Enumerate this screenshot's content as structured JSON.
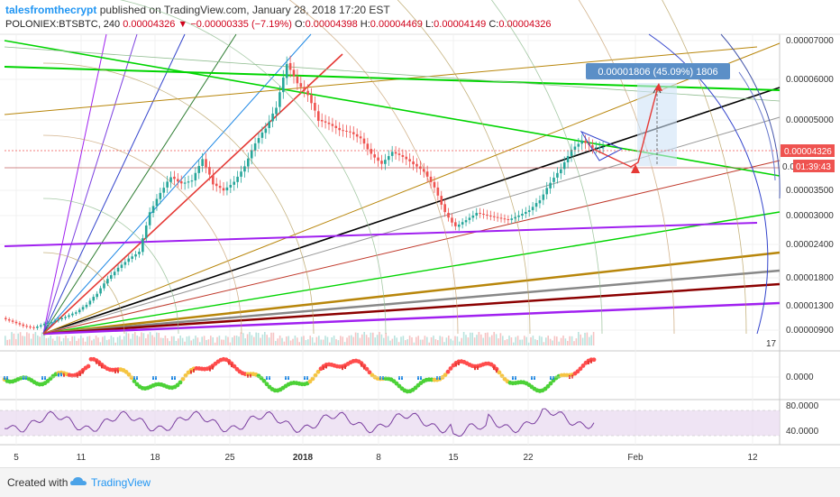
{
  "header": {
    "author": "talesfromthecrypt",
    "published": "published on TradingView.com, January 28, 2018 17:20 EST",
    "symbol": "POLONIEX:BTSBTC, 240",
    "last": "0.00004326",
    "change": "−0.00000335 (−7.19%)",
    "o_label": "O:",
    "o": "0.00004398",
    "h_label": "H:",
    "h": "0.00004469",
    "l_label": "L:",
    "l": "0.00004149",
    "c_label": "C:",
    "c": "0.00004326"
  },
  "footer": {
    "created_with": "Created with",
    "brand": "TradingView",
    "icon": "tradingview-cloud-icon"
  },
  "colors": {
    "up": "#26a69a",
    "down": "#ef5350",
    "price_label_bg": "#ef5350",
    "measure_bg": "#5b8fc7",
    "green_line": "#00d400",
    "black_line": "#000000",
    "red_line": "#e53935",
    "purple_line": "#a020f0",
    "brown_line": "#b8860b",
    "rsi_fill": "#e8d8f0"
  },
  "chart_data": {
    "type": "candlestick",
    "symbol": "POLONIEX:BTSBTC",
    "interval": "240",
    "x_tick_labels": [
      "5",
      "11",
      "18",
      "25",
      "2018",
      "8",
      "15",
      "22",
      "Feb",
      "12"
    ],
    "y_tick_labels": [
      "0.00007000",
      "0.00006000",
      "0.00005000",
      "0.00003500",
      "0.00003000",
      "0.00002400",
      "0.00001800",
      "0.00001300",
      "0.00000900"
    ],
    "price_axis_labels": [
      {
        "text": "0.00004326",
        "kind": "last-price"
      },
      {
        "text": "0.0",
        "kind": "countdown-price"
      },
      {
        "text": "01:39:43",
        "kind": "countdown"
      }
    ],
    "measure_label": "0.00001806 (45.09%) 1806",
    "volume_axis_label": "17",
    "price_ohlc_approx": [
      [
        5,
        1.08e-05
      ],
      [
        6,
        1.02e-05
      ],
      [
        7,
        9.6e-06
      ],
      [
        8,
        9.3e-06
      ],
      [
        9,
        9.9e-06
      ],
      [
        10,
        1.04e-05
      ],
      [
        11,
        1.1e-05
      ],
      [
        12,
        1.18e-05
      ],
      [
        13,
        1.32e-05
      ],
      [
        14,
        1.5e-05
      ],
      [
        15,
        1.78e-05
      ],
      [
        16,
        1.96e-05
      ],
      [
        17,
        2.12e-05
      ],
      [
        18,
        2.25e-05
      ],
      [
        19,
        3.05e-05
      ],
      [
        20,
        3.45e-05
      ],
      [
        21,
        3.75e-05
      ],
      [
        22,
        3.62e-05
      ],
      [
        23,
        3.68e-05
      ],
      [
        24,
        4.1e-05
      ],
      [
        25,
        3.62e-05
      ],
      [
        26,
        3.5e-05
      ],
      [
        27,
        3.65e-05
      ],
      [
        28,
        3.95e-05
      ],
      [
        29,
        4.45e-05
      ],
      [
        30,
        4.8e-05
      ],
      [
        31,
        5.3e-05
      ],
      [
        32,
        6.4e-05
      ],
      [
        33,
        5.9e-05
      ],
      [
        34,
        5.6e-05
      ],
      [
        35,
        5e-05
      ],
      [
        36,
        4.9e-05
      ],
      [
        37,
        4.75e-05
      ],
      [
        38,
        4.7e-05
      ],
      [
        39,
        4.55e-05
      ],
      [
        40,
        4.2e-05
      ],
      [
        41,
        4e-05
      ],
      [
        42,
        4.25e-05
      ],
      [
        43,
        4.15e-05
      ],
      [
        44,
        4e-05
      ],
      [
        45,
        3.85e-05
      ],
      [
        46,
        3.55e-05
      ],
      [
        47,
        3.05e-05
      ],
      [
        48,
        2.75e-05
      ],
      [
        49,
        2.9e-05
      ],
      [
        50,
        3.05e-05
      ],
      [
        51,
        3e-05
      ],
      [
        52,
        2.95e-05
      ],
      [
        53,
        2.9e-05
      ],
      [
        54,
        3e-05
      ],
      [
        55,
        3.1e-05
      ],
      [
        56,
        3.3e-05
      ],
      [
        57,
        3.65e-05
      ],
      [
        58,
        3.9e-05
      ],
      [
        59,
        4.3e-05
      ],
      [
        60,
        4.5e-05
      ],
      [
        61,
        4.35e-05
      ]
    ],
    "macd_axis_labels": [
      "0.0000"
    ],
    "rsi_axis_labels": [
      "80.0000",
      "40.0000"
    ],
    "drawing_tools": [
      "fan lines",
      "arcs",
      "trend lines",
      "price range measure"
    ]
  }
}
